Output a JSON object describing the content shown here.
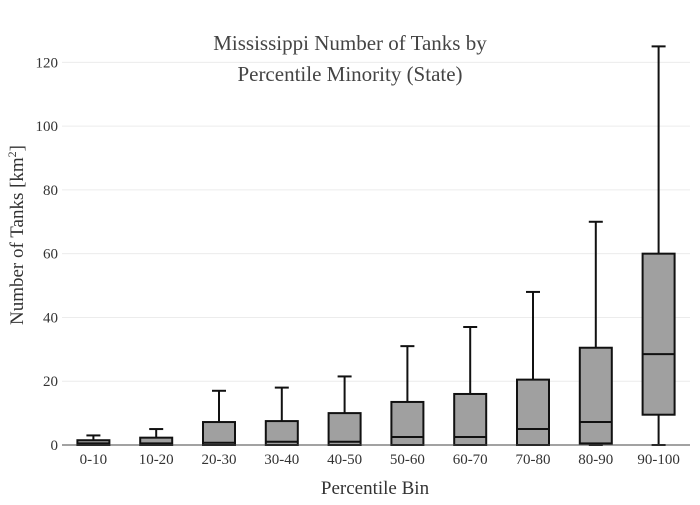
{
  "chart_data": {
    "type": "box",
    "title_lines": [
      "Mississippi Number of Tanks by",
      "Percentile Minority (State)"
    ],
    "xlabel": "Percentile Bin",
    "ylabel_main": "Number of Tanks  [km",
    "ylabel_sup": "2",
    "ylabel_end": "]",
    "ylim": [
      0,
      127
    ],
    "yticks": [
      0,
      20,
      40,
      60,
      80,
      100,
      120
    ],
    "ytick_labels": [
      "0",
      "20",
      "40",
      "60",
      "80",
      "100",
      "120"
    ],
    "grid": true,
    "box_color": "#a0a0a0",
    "line_color": "#111111",
    "categories": [
      "0-10",
      "10-20",
      "20-30",
      "30-40",
      "40-50",
      "50-60",
      "60-70",
      "70-80",
      "80-90",
      "90-100"
    ],
    "boxes": [
      {
        "min": 0,
        "q1": 0,
        "median": 0.5,
        "q3": 1.5,
        "max": 3
      },
      {
        "min": 0,
        "q1": 0,
        "median": 0.5,
        "q3": 2.3,
        "max": 5
      },
      {
        "min": 0,
        "q1": 0,
        "median": 0.7,
        "q3": 7.2,
        "max": 17
      },
      {
        "min": 0,
        "q1": 0,
        "median": 1,
        "q3": 7.5,
        "max": 18
      },
      {
        "min": 0,
        "q1": 0,
        "median": 1,
        "q3": 10,
        "max": 21.5
      },
      {
        "min": 0,
        "q1": 0,
        "median": 2.5,
        "q3": 13.5,
        "max": 31
      },
      {
        "min": 0,
        "q1": 0,
        "median": 2.5,
        "q3": 16,
        "max": 37
      },
      {
        "min": 0,
        "q1": 0,
        "median": 5,
        "q3": 20.5,
        "max": 48
      },
      {
        "min": 0,
        "q1": 0.5,
        "median": 7.2,
        "q3": 30.5,
        "max": 70
      },
      {
        "min": 0,
        "q1": 9.5,
        "median": 28.5,
        "q3": 60,
        "max": 125
      }
    ]
  }
}
